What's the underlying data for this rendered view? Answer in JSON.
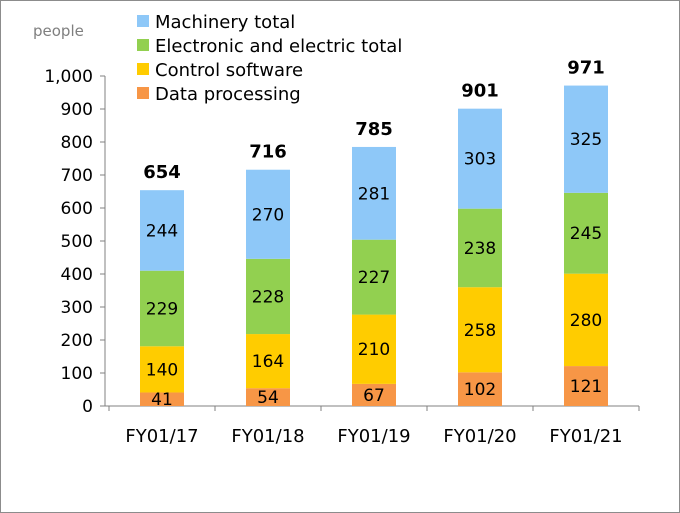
{
  "chart_data": {
    "type": "bar",
    "stacked": true,
    "unit_label": "people",
    "categories": [
      "FY01/17",
      "FY01/18",
      "FY01/19",
      "FY01/20",
      "FY01/21"
    ],
    "series": [
      {
        "name": "Data processing",
        "color": "#f79646",
        "values": [
          41,
          54,
          67,
          102,
          121
        ]
      },
      {
        "name": "Control software",
        "color": "#ffcc00",
        "values": [
          140,
          164,
          210,
          258,
          280
        ]
      },
      {
        "name": "Electronic and electric total",
        "color": "#92d050",
        "values": [
          229,
          228,
          227,
          238,
          245
        ]
      },
      {
        "name": "Machinery total",
        "color": "#8ec8f8",
        "values": [
          244,
          270,
          281,
          303,
          325
        ]
      }
    ],
    "totals": [
      654,
      716,
      785,
      901,
      971
    ],
    "ylim": [
      0,
      1000
    ],
    "yticks": [
      0,
      100,
      200,
      300,
      400,
      500,
      600,
      700,
      800,
      900,
      1000
    ],
    "ytick_labels": [
      "0",
      "100",
      "200",
      "300",
      "400",
      "500",
      "600",
      "700",
      "800",
      "900",
      "1,000"
    ],
    "legend_order": [
      "Machinery total",
      "Electronic and electric total",
      "Control software",
      "Data processing"
    ],
    "legend_position": "top",
    "grid": false
  }
}
